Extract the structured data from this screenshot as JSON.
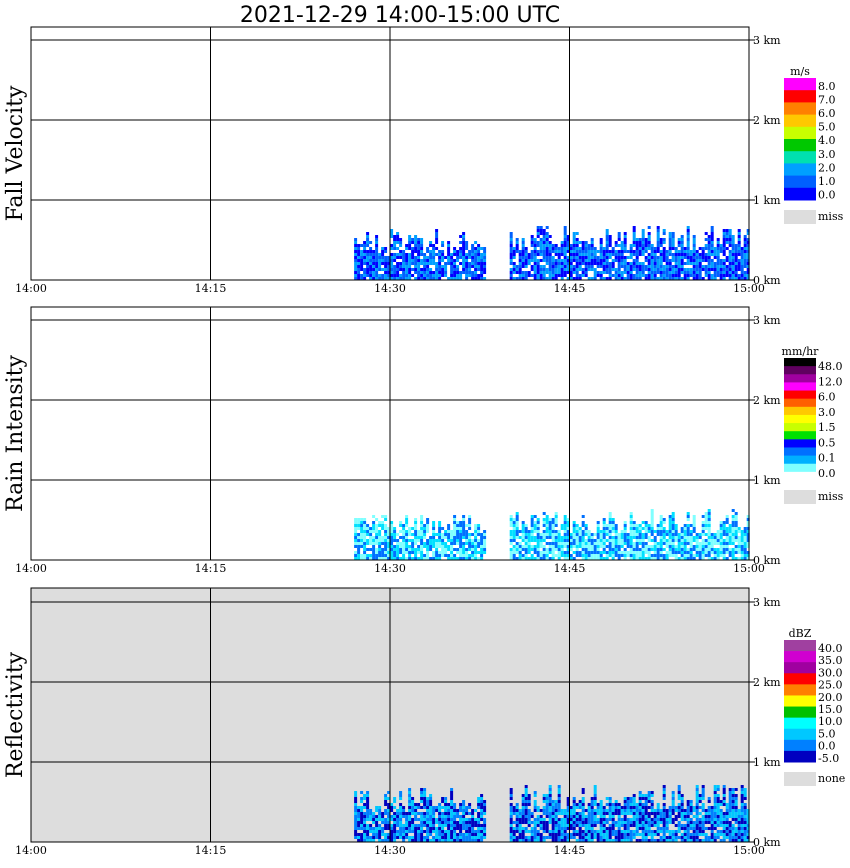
{
  "chart_data": {
    "type": "heatmap",
    "title": "2021-12-29   14:00-15:00 UTC",
    "x_ticks": [
      "14:00",
      "14:15",
      "14:30",
      "14:45",
      "15:00"
    ],
    "y_ticks": [
      "0 km",
      "1 km",
      "2 km",
      "3 km"
    ],
    "panels": [
      {
        "ylabel": "Fall Velocity",
        "background": "#ffffff",
        "colorbar": {
          "unit": "m/s",
          "labels": [
            "8.0",
            "7.0",
            "6.0",
            "5.0",
            "4.0",
            "3.0",
            "2.0",
            "1.0",
            "0.0"
          ],
          "colors": [
            "#ff00ff",
            "#ff0000",
            "#ff8000",
            "#ffc800",
            "#c8ff00",
            "#00c800",
            "#00e0b0",
            "#00a0ff",
            "#0060ff",
            "#0000ff"
          ],
          "missing_label": "miss",
          "missing_color": "#dddddd"
        },
        "echo": {
          "segments": [
            {
              "start": "14:27",
              "end": "14:38",
              "top_km": 0.65
            },
            {
              "start": "14:40",
              "end": "15:00",
              "top_km": 0.7
            }
          ],
          "dominant_colors": [
            "#0000ff",
            "#0060ff",
            "#00a0ff"
          ]
        }
      },
      {
        "ylabel": "Rain Intensity",
        "background": "#ffffff",
        "colorbar": {
          "unit": "mm/hr",
          "labels": [
            "48.0",
            "12.0",
            "6.0",
            "3.0",
            "1.5",
            "0.5",
            "0.1",
            "0.0"
          ],
          "colors": [
            "#000000",
            "#600060",
            "#a000a0",
            "#ff00ff",
            "#ff0000",
            "#ff6000",
            "#ffc800",
            "#ffff00",
            "#c8ff00",
            "#00e000",
            "#0000ff",
            "#0070ff",
            "#00b0ff",
            "#80ffff",
            "#ffffff"
          ],
          "missing_label": "miss",
          "missing_color": "#dddddd"
        },
        "echo": {
          "segments": [
            {
              "start": "14:27",
              "end": "14:38",
              "top_km": 0.6
            },
            {
              "start": "14:40",
              "end": "15:00",
              "top_km": 0.65
            }
          ],
          "dominant_colors": [
            "#80ffff",
            "#00e0ff",
            "#0070ff"
          ]
        }
      },
      {
        "ylabel": "Reflectivity",
        "background": "#dddddd",
        "colorbar": {
          "unit": "dBZ",
          "labels": [
            "40.0",
            "35.0",
            "30.0",
            "25.0",
            "20.0",
            "15.0",
            "10.0",
            "5.0",
            "0.0",
            "-5.0"
          ],
          "colors": [
            "#a040a0",
            "#d000d0",
            "#a000a0",
            "#ff0000",
            "#ff8000",
            "#ffff00",
            "#00c000",
            "#00ffff",
            "#00c8ff",
            "#0080ff",
            "#0000c0"
          ],
          "missing_label": "none",
          "missing_color": "#dddddd"
        },
        "echo": {
          "segments": [
            {
              "start": "14:27",
              "end": "14:38",
              "top_km": 0.7
            },
            {
              "start": "14:40",
              "end": "15:00",
              "top_km": 0.75
            }
          ],
          "dominant_colors": [
            "#00c8ff",
            "#0080ff",
            "#0000c0"
          ]
        }
      }
    ]
  }
}
